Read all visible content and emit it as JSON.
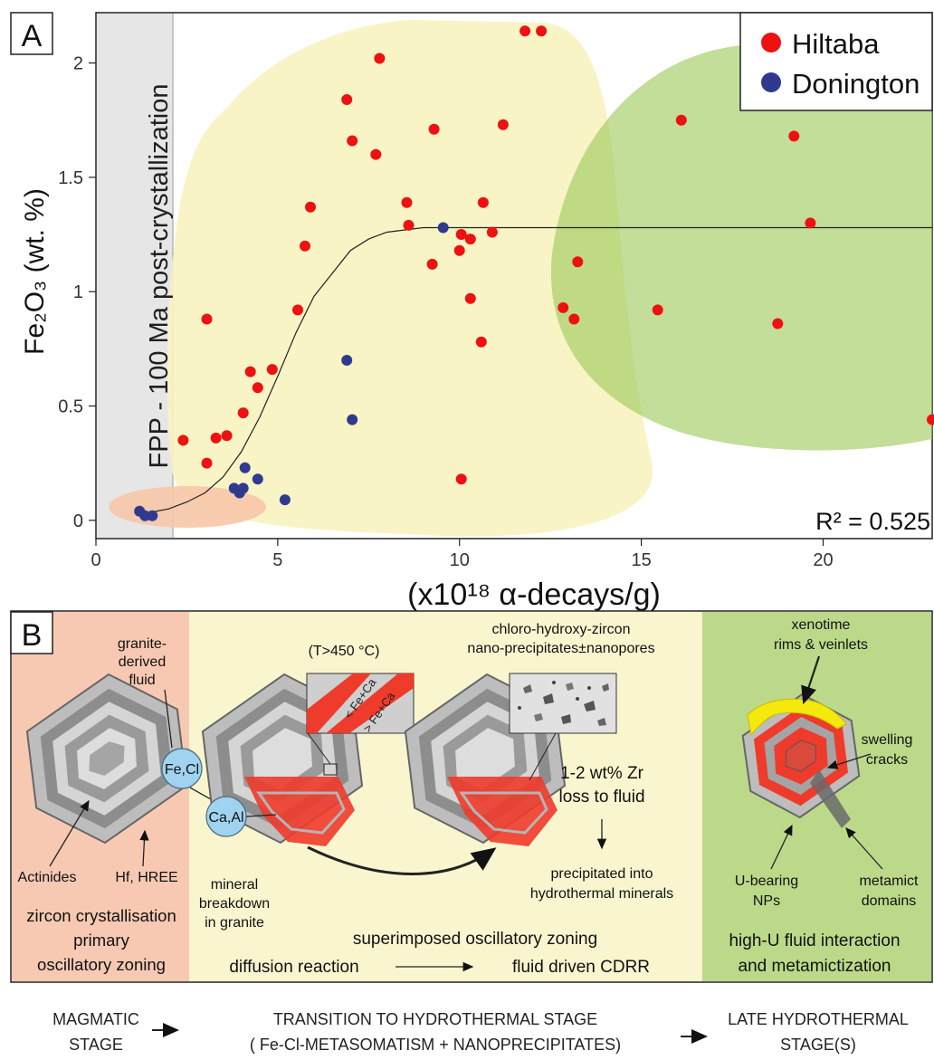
{
  "panel_a": {
    "label": "A",
    "shaded_label": "FPP - 100 Ma post-crystallization",
    "r2_text": "R² = 0.525",
    "legend": [
      {
        "label": "Hiltaba",
        "color": "#ee1111"
      },
      {
        "label": "Donington",
        "color": "#2f3a8f"
      }
    ]
  },
  "chart_data": {
    "type": "scatter",
    "xlabel": "(x10¹⁸ α-decays/g)",
    "ylabel": "Fe₂O₃ (wt. %)",
    "xlim": [
      0,
      23
    ],
    "ylim": [
      -0.08,
      2.22
    ],
    "x_ticks": [
      0,
      5,
      10,
      15,
      20
    ],
    "y_ticks": [
      0,
      0.5,
      1,
      1.5,
      2
    ],
    "y_tick_labels": [
      "0",
      "0.5",
      "1",
      "1.5",
      "2"
    ],
    "grid": false,
    "legend_position": "top-right",
    "series": [
      {
        "name": "Hiltaba",
        "color": "#ee1111",
        "points": [
          [
            11.8,
            2.14
          ],
          [
            12.25,
            2.14
          ],
          [
            7.8,
            2.02
          ],
          [
            6.9,
            1.84
          ],
          [
            11.2,
            1.73
          ],
          [
            9.3,
            1.71
          ],
          [
            7.05,
            1.66
          ],
          [
            16.1,
            1.75
          ],
          [
            19.2,
            1.68
          ],
          [
            7.7,
            1.6
          ],
          [
            5.9,
            1.37
          ],
          [
            8.55,
            1.39
          ],
          [
            10.65,
            1.39
          ],
          [
            19.65,
            1.3
          ],
          [
            8.6,
            1.29
          ],
          [
            5.75,
            1.2
          ],
          [
            10.05,
            1.25
          ],
          [
            10.9,
            1.26
          ],
          [
            10.3,
            1.23
          ],
          [
            10.0,
            1.18
          ],
          [
            9.25,
            1.12
          ],
          [
            13.25,
            1.13
          ],
          [
            10.3,
            0.97
          ],
          [
            12.85,
            0.93
          ],
          [
            13.15,
            0.88
          ],
          [
            15.45,
            0.92
          ],
          [
            3.05,
            0.88
          ],
          [
            5.55,
            0.92
          ],
          [
            18.75,
            0.86
          ],
          [
            10.6,
            0.78
          ],
          [
            4.25,
            0.65
          ],
          [
            4.85,
            0.66
          ],
          [
            4.45,
            0.58
          ],
          [
            4.05,
            0.47
          ],
          [
            23.0,
            0.44
          ],
          [
            2.4,
            0.35
          ],
          [
            3.3,
            0.36
          ],
          [
            3.6,
            0.37
          ],
          [
            3.05,
            0.25
          ],
          [
            10.05,
            0.18
          ]
        ]
      },
      {
        "name": "Donington",
        "color": "#2f3a8f",
        "points": [
          [
            1.2,
            0.04
          ],
          [
            1.35,
            0.02
          ],
          [
            1.55,
            0.02
          ],
          [
            9.55,
            1.28
          ],
          [
            6.9,
            0.7
          ],
          [
            7.05,
            0.44
          ],
          [
            4.1,
            0.23
          ],
          [
            4.45,
            0.18
          ],
          [
            3.8,
            0.14
          ],
          [
            4.05,
            0.14
          ],
          [
            3.95,
            0.12
          ],
          [
            5.2,
            0.09
          ]
        ]
      }
    ],
    "trend_curve": [
      [
        1.1,
        0.03
      ],
      [
        1.5,
        0.035
      ],
      [
        2.0,
        0.05
      ],
      [
        2.5,
        0.08
      ],
      [
        3.0,
        0.12
      ],
      [
        3.5,
        0.19
      ],
      [
        4.0,
        0.3
      ],
      [
        4.5,
        0.45
      ],
      [
        5.0,
        0.63
      ],
      [
        5.5,
        0.82
      ],
      [
        6.0,
        0.98
      ],
      [
        6.5,
        1.08
      ],
      [
        7.0,
        1.18
      ],
      [
        7.5,
        1.23
      ],
      [
        8.0,
        1.26
      ],
      [
        8.5,
        1.27
      ],
      [
        9.0,
        1.28
      ],
      [
        10.0,
        1.28
      ],
      [
        23.0,
        1.28
      ]
    ],
    "regions": [
      {
        "name": "magmatic",
        "color": "#f7c9b3"
      },
      {
        "name": "transition",
        "color": "#f7f3c0"
      },
      {
        "name": "late hydrothermal",
        "color": "#b9d77f"
      }
    ]
  },
  "panel_b": {
    "label": "B",
    "col1": {
      "fluid_label": "granite-\nderived\nfluid",
      "fecl_bubble": "Fe,Cl",
      "actinides": "Actinides",
      "hf_hree": "Hf, HREE",
      "caption1": "zircon crystallisation",
      "caption2": "primary",
      "caption3": "oscillatory zoning"
    },
    "col2": {
      "temp_label": "(T>450 °C)",
      "inset_less": "< Fe+Ca",
      "inset_more": "> Fe+Ca",
      "caal_bubble": "Ca,Al",
      "mineral_label1": "mineral",
      "mineral_label2": "breakdown",
      "mineral_label3": "in granite",
      "nano_label1": "chloro-hydroxy-zircon",
      "nano_label2": "nano-precipitates±nanopores",
      "zr_loss1": "1-2 wt% Zr",
      "zr_loss2": "loss to fluid",
      "precip1": "precipitated into",
      "precip2": "hydrothermal minerals",
      "superimposed": "superimposed oscillatory zoning",
      "diffusion": "diffusion reaction",
      "fluid_driven": "fluid driven CDRR"
    },
    "col3": {
      "xeno1": "xenotime",
      "xeno2": "rims & veinlets",
      "swell1": "swelling",
      "swell2": "cracks",
      "ubear1": "U-bearing",
      "ubear2": "NPs",
      "meta1": "metamict",
      "meta2": "domains",
      "caption1": "high-U fluid interaction",
      "caption2": "and metamictization"
    }
  },
  "stages": {
    "magmatic1": "MAGMATIC",
    "magmatic2": "STAGE",
    "transition1": "TRANSITION TO HYDROTHERMAL STAGE",
    "transition2": "( Fe-Cl-METASOMATISM + NANOPRECIPITATES)",
    "late1": "LATE HYDROTHERMAL",
    "late2": "STAGE(S)"
  }
}
